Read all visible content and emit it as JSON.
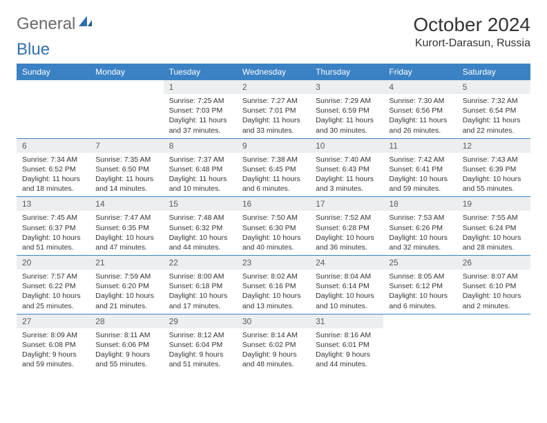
{
  "logo": {
    "text1": "General",
    "text2": "Blue"
  },
  "header": {
    "month": "October 2024",
    "location": "Kurort-Darasun, Russia"
  },
  "colors": {
    "header_bg": "#3b82c4",
    "header_text": "#ffffff",
    "daynum_bg": "#eceef0",
    "border": "#3b82c4",
    "logo_gray": "#6a6a6a",
    "logo_blue": "#2f6fb0"
  },
  "weekdays": [
    "Sunday",
    "Monday",
    "Tuesday",
    "Wednesday",
    "Thursday",
    "Friday",
    "Saturday"
  ],
  "weeks": [
    [
      null,
      null,
      {
        "n": "1",
        "sr": "Sunrise: 7:25 AM",
        "ss": "Sunset: 7:03 PM",
        "dl": "Daylight: 11 hours and 37 minutes."
      },
      {
        "n": "2",
        "sr": "Sunrise: 7:27 AM",
        "ss": "Sunset: 7:01 PM",
        "dl": "Daylight: 11 hours and 33 minutes."
      },
      {
        "n": "3",
        "sr": "Sunrise: 7:29 AM",
        "ss": "Sunset: 6:59 PM",
        "dl": "Daylight: 11 hours and 30 minutes."
      },
      {
        "n": "4",
        "sr": "Sunrise: 7:30 AM",
        "ss": "Sunset: 6:56 PM",
        "dl": "Daylight: 11 hours and 26 minutes."
      },
      {
        "n": "5",
        "sr": "Sunrise: 7:32 AM",
        "ss": "Sunset: 6:54 PM",
        "dl": "Daylight: 11 hours and 22 minutes."
      }
    ],
    [
      {
        "n": "6",
        "sr": "Sunrise: 7:34 AM",
        "ss": "Sunset: 6:52 PM",
        "dl": "Daylight: 11 hours and 18 minutes."
      },
      {
        "n": "7",
        "sr": "Sunrise: 7:35 AM",
        "ss": "Sunset: 6:50 PM",
        "dl": "Daylight: 11 hours and 14 minutes."
      },
      {
        "n": "8",
        "sr": "Sunrise: 7:37 AM",
        "ss": "Sunset: 6:48 PM",
        "dl": "Daylight: 11 hours and 10 minutes."
      },
      {
        "n": "9",
        "sr": "Sunrise: 7:38 AM",
        "ss": "Sunset: 6:45 PM",
        "dl": "Daylight: 11 hours and 6 minutes."
      },
      {
        "n": "10",
        "sr": "Sunrise: 7:40 AM",
        "ss": "Sunset: 6:43 PM",
        "dl": "Daylight: 11 hours and 3 minutes."
      },
      {
        "n": "11",
        "sr": "Sunrise: 7:42 AM",
        "ss": "Sunset: 6:41 PM",
        "dl": "Daylight: 10 hours and 59 minutes."
      },
      {
        "n": "12",
        "sr": "Sunrise: 7:43 AM",
        "ss": "Sunset: 6:39 PM",
        "dl": "Daylight: 10 hours and 55 minutes."
      }
    ],
    [
      {
        "n": "13",
        "sr": "Sunrise: 7:45 AM",
        "ss": "Sunset: 6:37 PM",
        "dl": "Daylight: 10 hours and 51 minutes."
      },
      {
        "n": "14",
        "sr": "Sunrise: 7:47 AM",
        "ss": "Sunset: 6:35 PM",
        "dl": "Daylight: 10 hours and 47 minutes."
      },
      {
        "n": "15",
        "sr": "Sunrise: 7:48 AM",
        "ss": "Sunset: 6:32 PM",
        "dl": "Daylight: 10 hours and 44 minutes."
      },
      {
        "n": "16",
        "sr": "Sunrise: 7:50 AM",
        "ss": "Sunset: 6:30 PM",
        "dl": "Daylight: 10 hours and 40 minutes."
      },
      {
        "n": "17",
        "sr": "Sunrise: 7:52 AM",
        "ss": "Sunset: 6:28 PM",
        "dl": "Daylight: 10 hours and 36 minutes."
      },
      {
        "n": "18",
        "sr": "Sunrise: 7:53 AM",
        "ss": "Sunset: 6:26 PM",
        "dl": "Daylight: 10 hours and 32 minutes."
      },
      {
        "n": "19",
        "sr": "Sunrise: 7:55 AM",
        "ss": "Sunset: 6:24 PM",
        "dl": "Daylight: 10 hours and 28 minutes."
      }
    ],
    [
      {
        "n": "20",
        "sr": "Sunrise: 7:57 AM",
        "ss": "Sunset: 6:22 PM",
        "dl": "Daylight: 10 hours and 25 minutes."
      },
      {
        "n": "21",
        "sr": "Sunrise: 7:59 AM",
        "ss": "Sunset: 6:20 PM",
        "dl": "Daylight: 10 hours and 21 minutes."
      },
      {
        "n": "22",
        "sr": "Sunrise: 8:00 AM",
        "ss": "Sunset: 6:18 PM",
        "dl": "Daylight: 10 hours and 17 minutes."
      },
      {
        "n": "23",
        "sr": "Sunrise: 8:02 AM",
        "ss": "Sunset: 6:16 PM",
        "dl": "Daylight: 10 hours and 13 minutes."
      },
      {
        "n": "24",
        "sr": "Sunrise: 8:04 AM",
        "ss": "Sunset: 6:14 PM",
        "dl": "Daylight: 10 hours and 10 minutes."
      },
      {
        "n": "25",
        "sr": "Sunrise: 8:05 AM",
        "ss": "Sunset: 6:12 PM",
        "dl": "Daylight: 10 hours and 6 minutes."
      },
      {
        "n": "26",
        "sr": "Sunrise: 8:07 AM",
        "ss": "Sunset: 6:10 PM",
        "dl": "Daylight: 10 hours and 2 minutes."
      }
    ],
    [
      {
        "n": "27",
        "sr": "Sunrise: 8:09 AM",
        "ss": "Sunset: 6:08 PM",
        "dl": "Daylight: 9 hours and 59 minutes."
      },
      {
        "n": "28",
        "sr": "Sunrise: 8:11 AM",
        "ss": "Sunset: 6:06 PM",
        "dl": "Daylight: 9 hours and 55 minutes."
      },
      {
        "n": "29",
        "sr": "Sunrise: 8:12 AM",
        "ss": "Sunset: 6:04 PM",
        "dl": "Daylight: 9 hours and 51 minutes."
      },
      {
        "n": "30",
        "sr": "Sunrise: 8:14 AM",
        "ss": "Sunset: 6:02 PM",
        "dl": "Daylight: 9 hours and 48 minutes."
      },
      {
        "n": "31",
        "sr": "Sunrise: 8:16 AM",
        "ss": "Sunset: 6:01 PM",
        "dl": "Daylight: 9 hours and 44 minutes."
      },
      null,
      null
    ]
  ]
}
